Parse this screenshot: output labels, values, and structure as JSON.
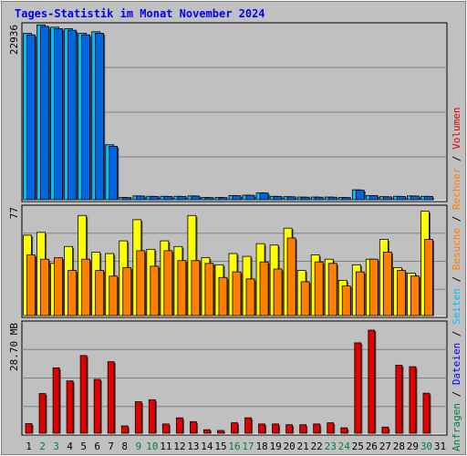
{
  "colors": {
    "background": "#c0c0c0",
    "title": "#0000ff",
    "weekday_label": "#000000",
    "weekend_label": "#008040",
    "hits": "#00bfff",
    "files": "#0066dd",
    "pages": "#ffff00",
    "visits": "#ff8000",
    "kbytes": "#e00000",
    "gridline": "#808080"
  },
  "chart_data": {
    "type": "bar",
    "title": "Tages-Statistik im Monat November 2024",
    "x": [
      "1",
      "2",
      "3",
      "4",
      "5",
      "6",
      "7",
      "8",
      "9",
      "10",
      "11",
      "12",
      "13",
      "14",
      "15",
      "16",
      "17",
      "18",
      "19",
      "20",
      "21",
      "22",
      "23",
      "24",
      "25",
      "26",
      "27",
      "28",
      "29",
      "30",
      "31"
    ],
    "weekend_days": [
      "2",
      "3",
      "9",
      "10",
      "16",
      "17",
      "23",
      "24",
      "30"
    ],
    "panels": [
      {
        "id": "requests",
        "ylabel": "22936",
        "ymax": 22936,
        "series": [
          {
            "name": "Anfragen",
            "color": "#00bfff",
            "values": [
              21800,
              22900,
              22600,
              22400,
              21800,
              22000,
              7200,
              300,
              500,
              450,
              450,
              450,
              500,
              300,
              300,
              550,
              600,
              900,
              450,
              400,
              350,
              350,
              350,
              300,
              1300,
              550,
              400,
              450,
              500,
              450
            ]
          },
          {
            "name": "Dateien",
            "color": "#0066dd",
            "values": [
              21600,
              22700,
              22400,
              22200,
              21600,
              21800,
              7000,
              280,
              480,
              430,
              430,
              430,
              480,
              280,
              280,
              530,
              580,
              880,
              430,
              380,
              330,
              330,
              330,
              280,
              1250,
              530,
              380,
              430,
              480,
              430
            ]
          }
        ]
      },
      {
        "id": "visits",
        "ylabel": "77",
        "ymax": 77,
        "series": [
          {
            "name": "Seiten",
            "color": "#ffff00",
            "values": [
              57,
              59,
              37,
              49,
              71,
              45,
              44,
              53,
              68,
              47,
              53,
              49,
              71,
              41,
              36,
              44,
              42,
              51,
              50,
              62,
              32,
              43,
              40,
              25,
              36,
              40,
              54,
              34,
              30,
              74
            ]
          },
          {
            "name": "Besuche",
            "color": "#ff8000",
            "values": [
              43,
              40,
              41,
              32,
              40,
              32,
              28,
              34,
              46,
              35,
              46,
              39,
              39,
              37,
              27,
              31,
              26,
              38,
              33,
              55,
              24,
              38,
              37,
              21,
              31,
              40,
              45,
              32,
              28,
              54
            ]
          }
        ]
      },
      {
        "id": "volume",
        "ylabel": "28.70 MB",
        "ymax": 28.7,
        "series": [
          {
            "name": "Volumen",
            "color": "#e00000",
            "values": [
              2.5,
              10.3,
              17.0,
              13.6,
              20.2,
              14.0,
              18.6,
              1.9,
              8.2,
              8.7,
              2.4,
              4.0,
              3.0,
              0.9,
              0.7,
              2.7,
              4.0,
              2.4,
              2.4,
              2.2,
              2.2,
              2.4,
              2.7,
              1.4,
              23.5,
              26.8,
              1.6,
              17.7,
              17.3,
              10.4
            ]
          }
        ]
      }
    ],
    "right_legend": [
      {
        "text": "Anfragen",
        "color": "#008040"
      },
      {
        "text": "Dateien",
        "color": "#0000ff"
      },
      {
        "text": "Seiten",
        "color": "#00bfff"
      },
      {
        "text": "Besuche",
        "color": "#ff8000"
      },
      {
        "text": "Rechner",
        "color": "#ff8000"
      },
      {
        "text": "Volumen",
        "color": "#e00000"
      }
    ]
  }
}
